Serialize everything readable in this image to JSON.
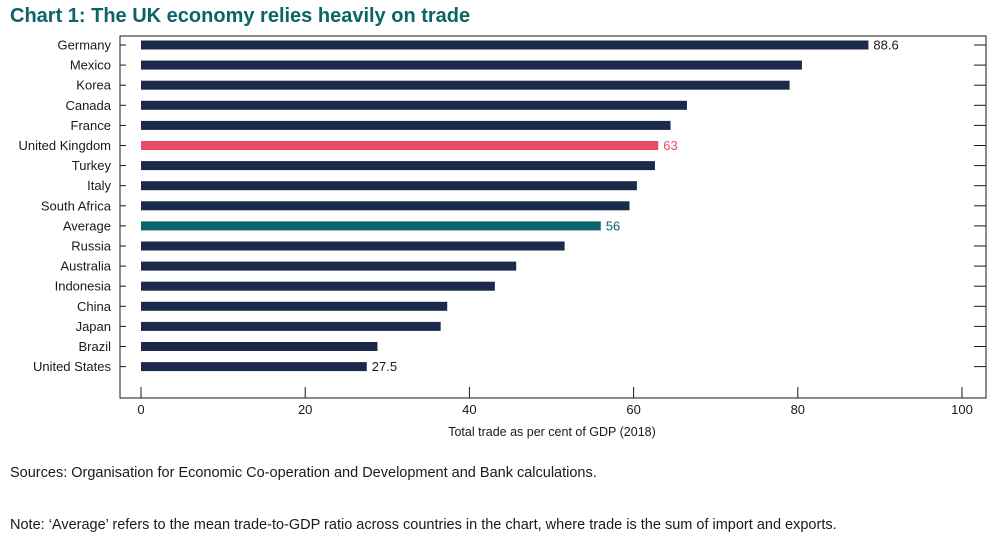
{
  "title": "Chart 1: The UK economy relies heavily on trade",
  "sources": "Sources: Organisation for Economic Co-operation and Development and Bank calculations.",
  "note": "Note: ‘Average’ refers to the mean trade-to-GDP ratio across countries in the chart, where trade is the sum of import and exports.",
  "colors": {
    "default": "#1b2a4a",
    "highlight": "#e84a6a",
    "average": "#0b6468"
  },
  "chart_data": {
    "type": "bar",
    "orientation": "horizontal",
    "title": "Chart 1: The UK economy relies heavily on trade",
    "xlabel": "Total trade as per cent of GDP (2018)",
    "ylabel": "",
    "xlim": [
      0,
      100
    ],
    "xticks": [
      "0",
      "20",
      "40",
      "60",
      "80",
      "100"
    ],
    "grid": false,
    "categories": [
      "Germany",
      "Mexico",
      "Korea",
      "Canada",
      "France",
      "United Kingdom",
      "Turkey",
      "Italy",
      "South Africa",
      "Average",
      "Russia",
      "Australia",
      "Indonesia",
      "China",
      "Japan",
      "Brazil",
      "United States"
    ],
    "values": [
      88.6,
      80.5,
      79.0,
      66.5,
      64.5,
      63,
      62.6,
      60.4,
      59.5,
      56,
      51.6,
      45.7,
      43.1,
      37.3,
      36.5,
      28.8,
      27.5
    ],
    "bar_styles": [
      "default",
      "default",
      "default",
      "default",
      "default",
      "highlight",
      "default",
      "default",
      "default",
      "average",
      "default",
      "default",
      "default",
      "default",
      "default",
      "default",
      "default"
    ],
    "data_labels": [
      {
        "category": "Germany",
        "text": "88.6"
      },
      {
        "category": "United Kingdom",
        "text": "63"
      },
      {
        "category": "Average",
        "text": "56"
      },
      {
        "category": "United States",
        "text": "27.5"
      }
    ]
  }
}
